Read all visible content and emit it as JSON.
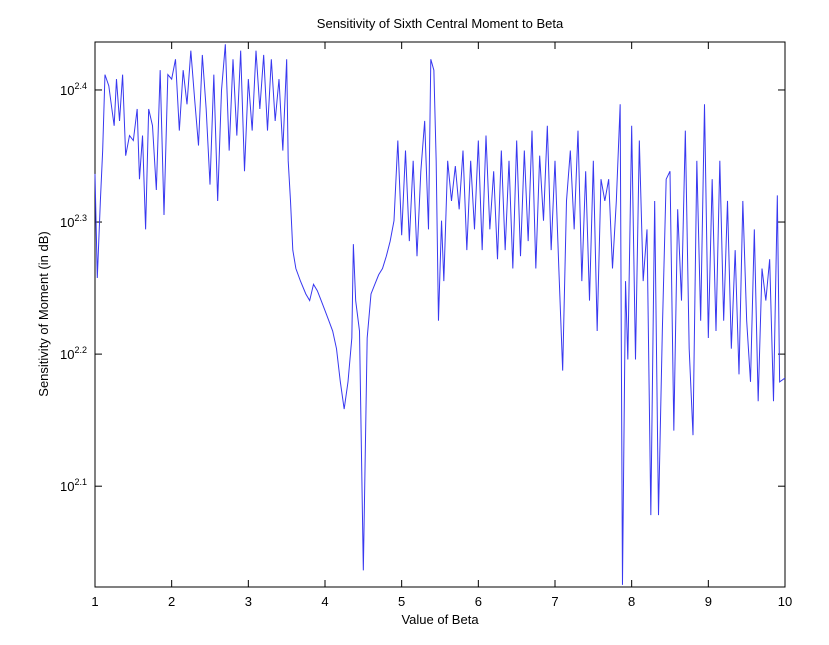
{
  "chart_data": {
    "type": "line",
    "title": "Sensitivity of Sixth Central Moment to Beta",
    "x_label": "Value of Beta",
    "y_label": "Sensitivity of Moment (in dB)",
    "y_scale": "log",
    "grid": false,
    "xlim": [
      1,
      10
    ],
    "xticks": [
      1,
      2,
      3,
      4,
      5,
      6,
      7,
      8,
      9,
      10
    ],
    "ylim": [
      105.6,
      273.1
    ],
    "yticks": [
      {
        "value": 125.89,
        "label": {
          "base": "10",
          "exponent": "2.1"
        }
      },
      {
        "value": 158.49,
        "label": {
          "base": "10",
          "exponent": "2.2"
        }
      },
      {
        "value": 199.53,
        "label": {
          "base": "10",
          "exponent": "2.3"
        }
      },
      {
        "value": 251.19,
        "label": {
          "base": "10",
          "exponent": "2.4"
        }
      }
    ],
    "series": [
      {
        "color": "#3838f0",
        "x": [
          1.0,
          1.03,
          1.07,
          1.1,
          1.13,
          1.18,
          1.22,
          1.25,
          1.28,
          1.32,
          1.36,
          1.4,
          1.45,
          1.5,
          1.55,
          1.58,
          1.62,
          1.66,
          1.7,
          1.75,
          1.8,
          1.85,
          1.9,
          1.95,
          2.0,
          2.05,
          2.1,
          2.15,
          2.2,
          2.25,
          2.3,
          2.35,
          2.4,
          2.45,
          2.5,
          2.55,
          2.6,
          2.65,
          2.7,
          2.75,
          2.8,
          2.85,
          2.9,
          2.95,
          3.0,
          3.05,
          3.1,
          3.15,
          3.2,
          3.25,
          3.3,
          3.35,
          3.4,
          3.45,
          3.5,
          3.52,
          3.55,
          3.58,
          3.62,
          3.68,
          3.75,
          3.8,
          3.85,
          3.9,
          3.95,
          4.0,
          4.05,
          4.1,
          4.15,
          4.2,
          4.25,
          4.3,
          4.35,
          4.37,
          4.4,
          4.45,
          4.5,
          4.55,
          4.6,
          4.65,
          4.7,
          4.75,
          4.8,
          4.85,
          4.9,
          4.95,
          5.0,
          5.05,
          5.1,
          5.15,
          5.2,
          5.25,
          5.3,
          5.35,
          5.38,
          5.42,
          5.45,
          5.48,
          5.52,
          5.55,
          5.6,
          5.65,
          5.7,
          5.75,
          5.8,
          5.85,
          5.9,
          5.95,
          6.0,
          6.05,
          6.1,
          6.15,
          6.2,
          6.25,
          6.3,
          6.35,
          6.4,
          6.45,
          6.5,
          6.55,
          6.6,
          6.65,
          6.7,
          6.75,
          6.8,
          6.85,
          6.9,
          6.95,
          7.0,
          7.05,
          7.1,
          7.15,
          7.2,
          7.25,
          7.3,
          7.35,
          7.4,
          7.45,
          7.5,
          7.55,
          7.6,
          7.65,
          7.7,
          7.75,
          7.8,
          7.85,
          7.88,
          7.92,
          7.95,
          8.0,
          8.05,
          8.1,
          8.15,
          8.2,
          8.25,
          8.3,
          8.35,
          8.4,
          8.45,
          8.5,
          8.55,
          8.6,
          8.65,
          8.7,
          8.75,
          8.8,
          8.85,
          8.9,
          8.95,
          9.0,
          9.05,
          9.1,
          9.15,
          9.2,
          9.25,
          9.3,
          9.35,
          9.4,
          9.45,
          9.5,
          9.55,
          9.6,
          9.65,
          9.7,
          9.75,
          9.8,
          9.85,
          9.9,
          9.93,
          10.0
        ],
        "values": [
          217,
          181,
          207,
          226,
          258,
          253,
          243,
          236,
          256,
          238,
          258,
          224,
          232,
          230,
          243,
          215,
          232,
          197,
          243,
          236,
          211,
          260,
          202,
          258,
          256,
          265,
          234,
          260,
          245,
          269,
          247,
          228,
          267,
          243,
          213,
          258,
          207,
          251,
          272,
          226,
          265,
          232,
          269,
          218,
          256,
          234,
          269,
          243,
          267,
          234,
          265,
          238,
          256,
          226,
          265,
          222,
          207,
          190,
          184,
          180,
          176,
          174,
          179,
          177,
          174,
          171,
          168,
          165,
          160,
          151,
          144,
          151,
          163,
          192,
          174,
          165,
          108.7,
          163,
          176,
          179,
          182,
          184,
          188,
          193,
          200,
          230,
          195,
          226,
          193,
          222,
          188,
          218,
          238,
          197,
          265,
          260,
          222,
          168,
          200,
          180,
          222,
          207,
          220,
          204,
          226,
          190,
          222,
          197,
          230,
          190,
          232,
          197,
          218,
          187,
          226,
          190,
          222,
          184,
          230,
          188,
          226,
          193,
          234,
          184,
          224,
          200,
          236,
          190,
          222,
          184,
          154,
          207,
          226,
          197,
          234,
          180,
          218,
          174,
          222,
          165,
          215,
          207,
          215,
          184,
          207,
          245,
          106,
          180,
          157,
          236,
          157,
          230,
          180,
          197,
          119.7,
          207,
          119.7,
          165,
          215,
          218,
          138.7,
          204,
          174,
          234,
          160,
          137.6,
          222,
          168,
          245,
          163,
          215,
          165,
          222,
          168,
          207,
          160,
          190,
          153,
          207,
          168,
          151,
          197,
          146,
          184,
          174,
          187,
          146,
          209,
          151,
          152
        ]
      }
    ]
  }
}
